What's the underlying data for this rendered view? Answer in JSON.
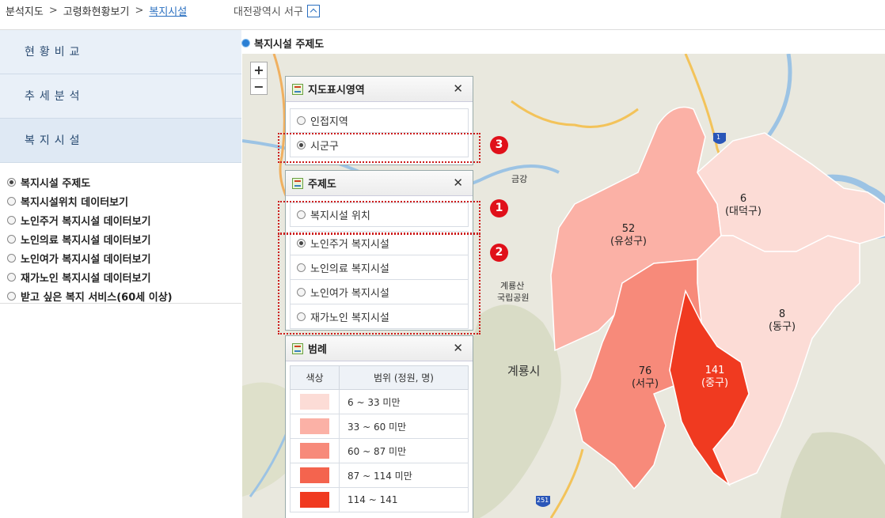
{
  "breadcrumb": {
    "items": [
      "분석지도",
      "고령화현황보기"
    ],
    "current": "복지시설",
    "separator": ">"
  },
  "region": {
    "label": "대전광역시 서구"
  },
  "side_menu": {
    "items": [
      "현황비교",
      "추세분석",
      "복지시설"
    ]
  },
  "side_radios": [
    {
      "label": "복지시설 주제도",
      "checked": true
    },
    {
      "label": "복지시설위치 데이터보기",
      "checked": false
    },
    {
      "label": "노인주거 복지시설 데이터보기",
      "checked": false
    },
    {
      "label": "노인의료 복지시설 데이터보기",
      "checked": false
    },
    {
      "label": "노인여가 복지시설 데이터보기",
      "checked": false
    },
    {
      "label": "재가노인 복지시설 데이터보기",
      "checked": false
    },
    {
      "label": "받고 싶은 복지 서비스(60세 이상)",
      "checked": false
    }
  ],
  "map": {
    "title": "복지시설 주제도",
    "zoom_in": "+",
    "zoom_out": "−",
    "districts": [
      {
        "name": "(유성구)",
        "value": "52",
        "color": "#fbb1a6"
      },
      {
        "name": "(대덕구)",
        "value": "6",
        "color": "#fcdcd6"
      },
      {
        "name": "(동구)",
        "value": "8",
        "color": "#fcdcd6"
      },
      {
        "name": "(서구)",
        "value": "76",
        "color": "#f78a7a"
      },
      {
        "name": "(중구)",
        "value": "141",
        "color": "#f03a20"
      }
    ],
    "place_labels": [
      "계룡산",
      "국립공원",
      "계룡시",
      "금강"
    ],
    "road_labels": [
      "1",
      "251"
    ]
  },
  "panel_area": {
    "title": "지도표시영역",
    "options": [
      {
        "label": "인접지역",
        "checked": false
      },
      {
        "label": "시군구",
        "checked": true
      }
    ]
  },
  "panel_theme": {
    "title": "주제도",
    "options": [
      {
        "label": "복지시설 위치",
        "checked": false
      },
      {
        "label": "노인주거 복지시설",
        "checked": true
      },
      {
        "label": "노인의료 복지시설",
        "checked": false
      },
      {
        "label": "노인여가 복지시설",
        "checked": false
      },
      {
        "label": "재가노인 복지시설",
        "checked": false
      }
    ]
  },
  "panel_legend": {
    "title": "범례",
    "col_color": "색상",
    "col_range": "범위 (정원, 명)",
    "rows": [
      {
        "label": "6 ~ 33 미만",
        "color": "#fcdcd6"
      },
      {
        "label": "33 ~ 60 미만",
        "color": "#fbb1a6"
      },
      {
        "label": "60 ~ 87 미만",
        "color": "#f78a7a"
      },
      {
        "label": "87 ~ 114 미만",
        "color": "#f4644e"
      },
      {
        "label": "114 ~ 141",
        "color": "#f03a20"
      }
    ]
  },
  "close_label": "✕",
  "badges": [
    "3",
    "1",
    "2"
  ]
}
